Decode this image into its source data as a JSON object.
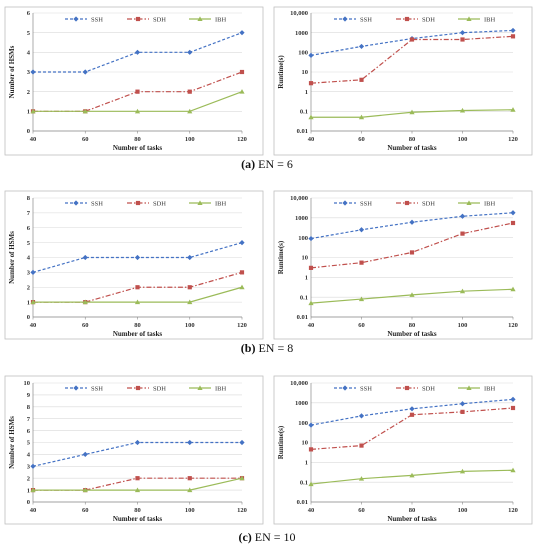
{
  "captions": [
    {
      "tag": "(a)",
      "text": "EN = 6"
    },
    {
      "tag": "(b)",
      "text": "EN = 8"
    },
    {
      "tag": "(c)",
      "text": "EN = 10"
    }
  ],
  "colors": {
    "SSH": "#4472c4",
    "SDH": "#c0504d",
    "IBH": "#9bbb59",
    "grid": "#d9d9d9",
    "frame": "#bfbfbf"
  },
  "chart_data": [
    {
      "type": "line",
      "title": "",
      "xlabel": "Number of tasks",
      "ylabel": "Number of HSMs",
      "x": [
        40,
        60,
        80,
        100,
        120
      ],
      "xlim": [
        40,
        120
      ],
      "ylim": [
        0,
        6
      ],
      "yticks": [
        0,
        1,
        2,
        3,
        4,
        5,
        6
      ],
      "yscale": "linear",
      "grid": "horizontal",
      "legend": "top",
      "series": [
        {
          "name": "SSH",
          "values": [
            3,
            3,
            4,
            4,
            5
          ]
        },
        {
          "name": "SDH",
          "values": [
            1,
            1,
            2,
            2,
            3
          ]
        },
        {
          "name": "IBH",
          "values": [
            1,
            1,
            1,
            1,
            2
          ]
        }
      ]
    },
    {
      "type": "line",
      "title": "",
      "xlabel": "Number of tasks",
      "ylabel": "Runtime(s)",
      "x": [
        40,
        60,
        80,
        100,
        120
      ],
      "xlim": [
        40,
        120
      ],
      "ylim": [
        0.01,
        10000
      ],
      "yscale": "log",
      "yticklabels": [
        "0.01",
        "0.1",
        "1",
        "10",
        "100",
        "1000",
        "10,000"
      ],
      "grid": "horizontal",
      "legend": "top",
      "series": [
        {
          "name": "SSH",
          "values": [
            70,
            200,
            500,
            1000,
            1300
          ]
        },
        {
          "name": "SDH",
          "values": [
            2.7,
            4,
            450,
            450,
            650
          ]
        },
        {
          "name": "IBH",
          "values": [
            0.05,
            0.05,
            0.09,
            0.11,
            0.12
          ]
        }
      ]
    },
    {
      "type": "line",
      "title": "",
      "xlabel": "Number of tasks",
      "ylabel": "Number of HSMs",
      "x": [
        40,
        60,
        80,
        100,
        120
      ],
      "xlim": [
        40,
        120
      ],
      "ylim": [
        0,
        8
      ],
      "yticks": [
        0,
        1,
        2,
        3,
        4,
        5,
        6,
        7,
        8
      ],
      "yscale": "linear",
      "grid": "horizontal",
      "legend": "top",
      "series": [
        {
          "name": "SSH",
          "values": [
            3,
            4,
            4,
            4,
            5
          ]
        },
        {
          "name": "SDH",
          "values": [
            1,
            1,
            2,
            2,
            3
          ]
        },
        {
          "name": "IBH",
          "values": [
            1,
            1,
            1,
            1,
            2
          ]
        }
      ]
    },
    {
      "type": "line",
      "title": "",
      "xlabel": "Number of tasks",
      "ylabel": "Runtime(s)",
      "x": [
        40,
        60,
        80,
        100,
        120
      ],
      "xlim": [
        40,
        120
      ],
      "ylim": [
        0.01,
        10000
      ],
      "yscale": "log",
      "yticklabels": [
        "0.01",
        "0.1",
        "1",
        "10",
        "100",
        "1000",
        "10,000"
      ],
      "grid": "horizontal",
      "legend": "top",
      "series": [
        {
          "name": "SSH",
          "values": [
            90,
            250,
            600,
            1200,
            1800
          ]
        },
        {
          "name": "SDH",
          "values": [
            3,
            5.5,
            18,
            160,
            550
          ]
        },
        {
          "name": "IBH",
          "values": [
            0.05,
            0.08,
            0.13,
            0.2,
            0.25
          ]
        }
      ]
    },
    {
      "type": "line",
      "title": "",
      "xlabel": "Number of tasks",
      "ylabel": "Number of HSMs",
      "x": [
        40,
        60,
        80,
        100,
        120
      ],
      "xlim": [
        40,
        120
      ],
      "ylim": [
        0,
        10
      ],
      "yticks": [
        0,
        1,
        2,
        3,
        4,
        5,
        6,
        7,
        8,
        9,
        10
      ],
      "yscale": "linear",
      "grid": "horizontal",
      "legend": "top",
      "series": [
        {
          "name": "SSH",
          "values": [
            3,
            4,
            5,
            5,
            5
          ]
        },
        {
          "name": "SDH",
          "values": [
            1,
            1,
            2,
            2,
            2
          ]
        },
        {
          "name": "IBH",
          "values": [
            1,
            1,
            1,
            1,
            2
          ]
        }
      ]
    },
    {
      "type": "line",
      "title": "",
      "xlabel": "Number of tasks",
      "ylabel": "Runtime(s)",
      "x": [
        40,
        60,
        80,
        100,
        120
      ],
      "xlim": [
        40,
        120
      ],
      "ylim": [
        0.01,
        10000
      ],
      "yscale": "log",
      "yticklabels": [
        "0.01",
        "0.1",
        "1",
        "10",
        "100",
        "1000",
        "10,000"
      ],
      "grid": "horizontal",
      "legend": "top",
      "series": [
        {
          "name": "SSH",
          "values": [
            75,
            220,
            500,
            900,
            1500
          ]
        },
        {
          "name": "SDH",
          "values": [
            4.5,
            7,
            250,
            350,
            550
          ]
        },
        {
          "name": "IBH",
          "values": [
            0.08,
            0.15,
            0.22,
            0.35,
            0.4
          ]
        }
      ]
    }
  ]
}
